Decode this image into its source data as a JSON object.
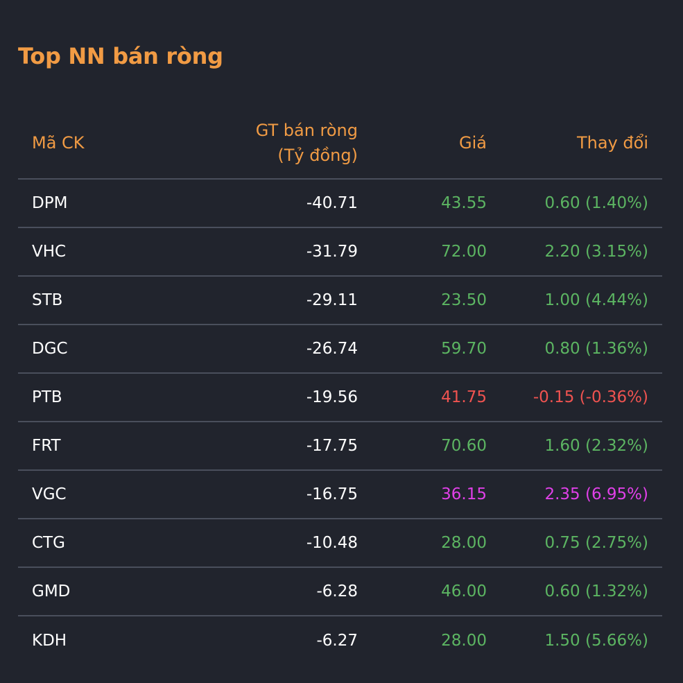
{
  "title": "Top NN bán ròng",
  "colors": {
    "background": "#21242d",
    "accent": "#f19b44",
    "up": "#5cb562",
    "down": "#ef5350",
    "ceiling": "#e040e8",
    "divider": "#4a4f5c"
  },
  "columns": {
    "code": "Mã CK",
    "value_line1": "GT bán ròng",
    "value_line2": "(Tỷ đồng)",
    "price": "Giá",
    "change": "Thay đổi"
  },
  "rows": [
    {
      "code": "DPM",
      "value": "-40.71",
      "price": "43.55",
      "change": "0.60 (1.40%)",
      "status": "up"
    },
    {
      "code": "VHC",
      "value": "-31.79",
      "price": "72.00",
      "change": "2.20 (3.15%)",
      "status": "up"
    },
    {
      "code": "STB",
      "value": "-29.11",
      "price": "23.50",
      "change": "1.00 (4.44%)",
      "status": "up"
    },
    {
      "code": "DGC",
      "value": "-26.74",
      "price": "59.70",
      "change": "0.80 (1.36%)",
      "status": "up"
    },
    {
      "code": "PTB",
      "value": "-19.56",
      "price": "41.75",
      "change": "-0.15 (-0.36%)",
      "status": "down"
    },
    {
      "code": "FRT",
      "value": "-17.75",
      "price": "70.60",
      "change": "1.60 (2.32%)",
      "status": "up"
    },
    {
      "code": "VGC",
      "value": "-16.75",
      "price": "36.15",
      "change": "2.35 (6.95%)",
      "status": "ceiling"
    },
    {
      "code": "CTG",
      "value": "-10.48",
      "price": "28.00",
      "change": "0.75 (2.75%)",
      "status": "up"
    },
    {
      "code": "GMD",
      "value": "-6.28",
      "price": "46.00",
      "change": "0.60 (1.32%)",
      "status": "up"
    },
    {
      "code": "KDH",
      "value": "-6.27",
      "price": "28.00",
      "change": "1.50 (5.66%)",
      "status": "up"
    }
  ]
}
